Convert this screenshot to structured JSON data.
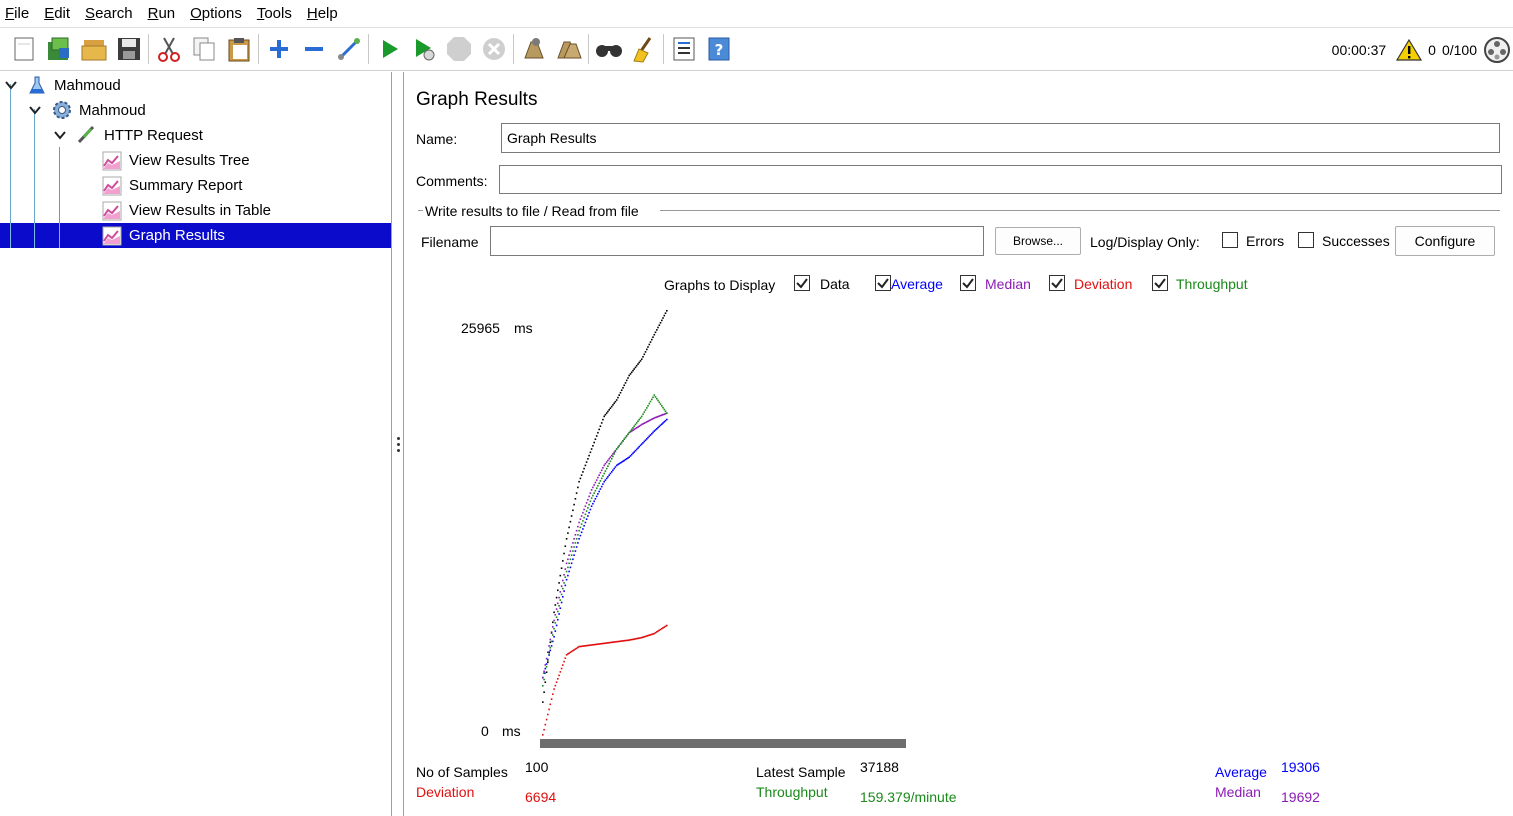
{
  "menu": [
    {
      "label": "File",
      "u": "F",
      "rest": "ile"
    },
    {
      "label": "Edit",
      "u": "E",
      "rest": "dit"
    },
    {
      "label": "Search",
      "u": "S",
      "rest": "earch"
    },
    {
      "label": "Run",
      "u": "R",
      "rest": "un"
    },
    {
      "label": "Options",
      "u": "O",
      "rest": "ptions"
    },
    {
      "label": "Tools",
      "u": "T",
      "rest": "ools"
    },
    {
      "label": "Help",
      "u": "H",
      "rest": "elp"
    }
  ],
  "toolbar": {
    "icons": [
      "new-icon",
      "templates-icon",
      "open-icon",
      "save-icon",
      "cut-icon",
      "copy-icon",
      "paste-icon",
      "expand-icon",
      "collapse-icon",
      "toggle-icon",
      "start-icon",
      "start-no-pauses-icon",
      "stop-icon",
      "shutdown-icon",
      "clear-icon",
      "clear-all-icon",
      "search-icon",
      "reset-search-icon",
      "function-helper-icon",
      "help-icon"
    ],
    "elapsed": "00:00:37",
    "warning_count": "0",
    "threads": "0/100"
  },
  "tree": {
    "items": [
      {
        "label": "Mahmoud",
        "icon": "test-plan-icon"
      },
      {
        "label": "Mahmoud",
        "icon": "thread-group-icon"
      },
      {
        "label": "HTTP Request",
        "icon": "sampler-icon"
      },
      {
        "label": "View Results Tree",
        "icon": "listener-icon"
      },
      {
        "label": "Summary Report",
        "icon": "listener-icon"
      },
      {
        "label": "View Results in Table",
        "icon": "listener-icon"
      },
      {
        "label": "Graph Results",
        "icon": "listener-icon"
      }
    ]
  },
  "panel": {
    "title": "Graph Results",
    "name_label": "Name:",
    "name_value": "Graph Results",
    "comments_label": "Comments:",
    "comments_value": "",
    "file_section_label": "Write results to file / Read from file",
    "filename_label": "Filename",
    "filename_value": "",
    "browse_label": "Browse...",
    "log_display_label": "Log/Display Only:",
    "errors_label": "Errors",
    "successes_label": "Successes",
    "configure_label": "Configure"
  },
  "graphs": {
    "label": "Graphs to Display",
    "options": [
      {
        "label": "Data",
        "checked": true,
        "color": "#000000"
      },
      {
        "label": "Average",
        "checked": true,
        "color": "#0000ff"
      },
      {
        "label": "Median",
        "checked": true,
        "color": "#8b1bb4"
      },
      {
        "label": "Deviation",
        "checked": true,
        "color": "#e01010"
      },
      {
        "label": "Throughput",
        "checked": true,
        "color": "#1a8a1a"
      }
    ]
  },
  "chart_data": {
    "type": "scatter",
    "ymax_label": "25965",
    "ymax_unit": "ms",
    "ymin_label": "0",
    "ymin_unit": "ms",
    "ylim": [
      0,
      25965
    ],
    "x": [
      1,
      10,
      20,
      30,
      40,
      50,
      60,
      70,
      80,
      90,
      100
    ],
    "series": [
      {
        "name": "Data",
        "color": "#000000",
        "values": [
          2000,
          7500,
          12000,
          15500,
          17500,
          19500,
          20500,
          22000,
          23000,
          24500,
          25965
        ]
      },
      {
        "name": "Average",
        "color": "#0000ff",
        "values": [
          3500,
          6000,
          9500,
          12000,
          14000,
          15500,
          16500,
          17000,
          17800,
          18600,
          19306
        ]
      },
      {
        "name": "Median",
        "color": "#8b1bb4",
        "values": [
          3500,
          7000,
          10500,
          13000,
          15000,
          16500,
          17500,
          18500,
          19000,
          19400,
          19692
        ]
      },
      {
        "name": "Deviation",
        "color": "#e01010",
        "values": [
          0,
          2800,
          4900,
          5400,
          5500,
          5600,
          5700,
          5800,
          5950,
          6200,
          6694
        ]
      },
      {
        "name": "Throughput",
        "color": "#1a8a1a",
        "values": [
          3000,
          6500,
          10000,
          12500,
          14500,
          16000,
          17500,
          18500,
          19500,
          20800,
          19700
        ]
      }
    ]
  },
  "stats": {
    "samples_label": "No of Samples",
    "samples_value": "100",
    "deviation_label": "Deviation",
    "deviation_value": "6694",
    "latest_label": "Latest Sample",
    "latest_value": "37188",
    "throughput_label": "Throughput",
    "throughput_value": "159.379/minute",
    "average_label": "Average",
    "average_value": "19306",
    "median_label": "Median",
    "median_value": "19692"
  }
}
